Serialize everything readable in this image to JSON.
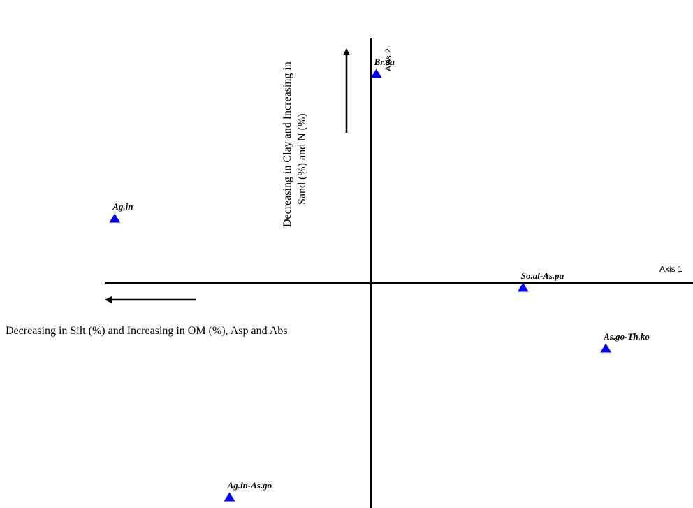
{
  "chart_data": {
    "type": "scatter",
    "axis1_label": "Axis 1",
    "axis2_label": "Axis 2",
    "axis1_description": "Decreasing in Silt (%) and Increasing in OM (%), Asp and Abs",
    "axis2_description_lines": [
      "Decreasing in Clay and Increasing in",
      "Sand (%) and N (%)"
    ],
    "marker": "triangle",
    "marker_color": "#0000ff",
    "points": [
      {
        "label": "Br.da",
        "x": 0.02,
        "y": 1.0
      },
      {
        "label": "Ag.in",
        "x": -0.96,
        "y": 0.31
      },
      {
        "label": "So.al-As.pa",
        "x": 0.57,
        "y": -0.02
      },
      {
        "label": "As.go-Th.ko",
        "x": 0.88,
        "y": -0.31
      },
      {
        "label": "Ag.in-As.go",
        "x": -0.53,
        "y": -1.02
      }
    ],
    "xlim": [
      -1.0,
      1.2
    ],
    "ylim": [
      -1.05,
      1.05
    ]
  }
}
